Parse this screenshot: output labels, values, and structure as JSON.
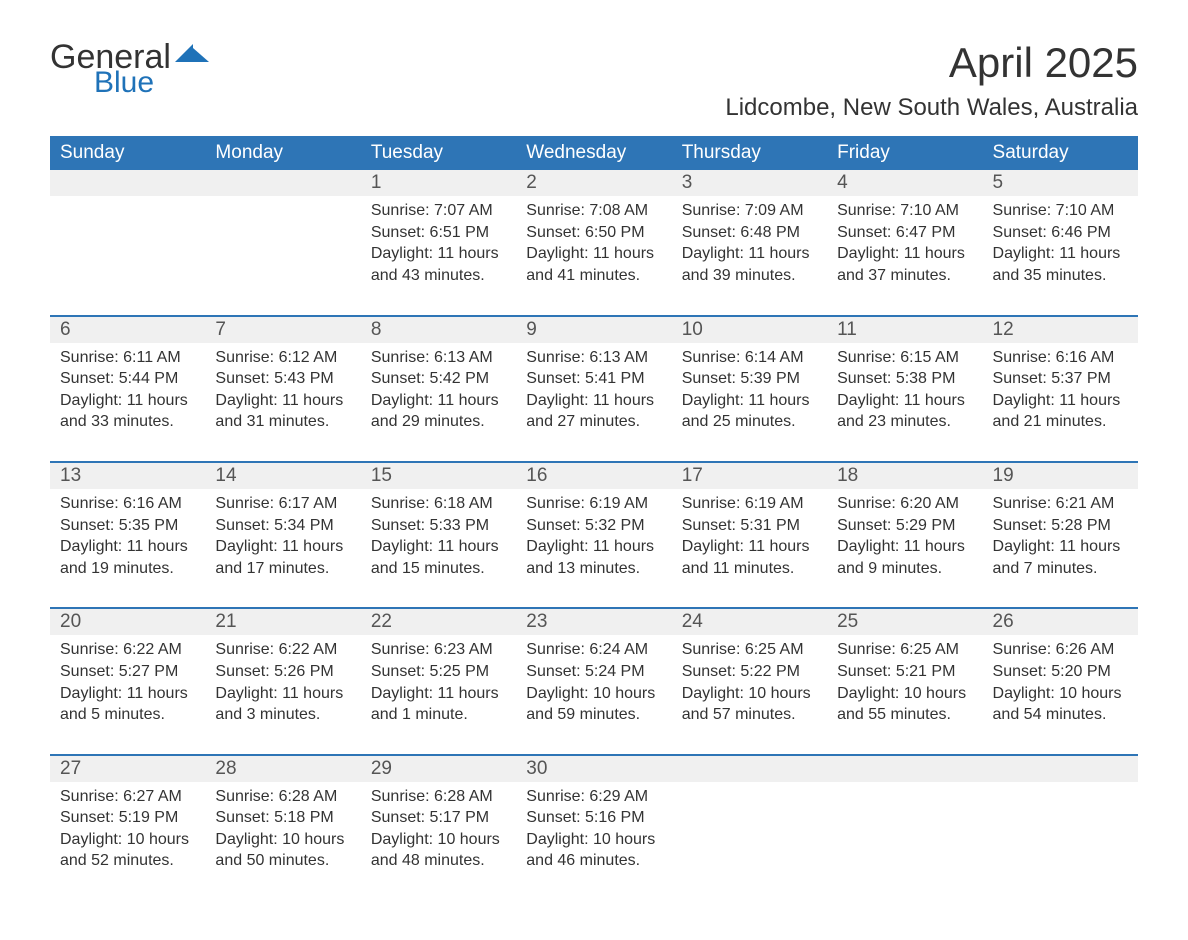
{
  "brand": {
    "word1": "General",
    "word2": "Blue",
    "word1_color": "#333333",
    "word2_color": "#1f72b8",
    "mark_color": "#1f72b8"
  },
  "title": "April 2025",
  "location": "Lidcombe, New South Wales, Australia",
  "colors": {
    "header_bg": "#2e75b6",
    "header_text": "#ffffff",
    "daynum_bg": "#f0f0f0",
    "rule": "#2e75b6",
    "body_text": "#333333",
    "page_bg": "#ffffff"
  },
  "typography": {
    "title_fontsize": 42,
    "location_fontsize": 24,
    "dayheader_fontsize": 19,
    "daynum_fontsize": 19,
    "cell_fontsize": 16,
    "font_family": "Segoe UI"
  },
  "day_headers": [
    "Sunday",
    "Monday",
    "Tuesday",
    "Wednesday",
    "Thursday",
    "Friday",
    "Saturday"
  ],
  "weeks": [
    [
      {
        "n": "",
        "sunrise": "",
        "sunset": "",
        "daylight": ""
      },
      {
        "n": "",
        "sunrise": "",
        "sunset": "",
        "daylight": ""
      },
      {
        "n": "1",
        "sunrise": "Sunrise: 7:07 AM",
        "sunset": "Sunset: 6:51 PM",
        "daylight": "Daylight: 11 hours and 43 minutes."
      },
      {
        "n": "2",
        "sunrise": "Sunrise: 7:08 AM",
        "sunset": "Sunset: 6:50 PM",
        "daylight": "Daylight: 11 hours and 41 minutes."
      },
      {
        "n": "3",
        "sunrise": "Sunrise: 7:09 AM",
        "sunset": "Sunset: 6:48 PM",
        "daylight": "Daylight: 11 hours and 39 minutes."
      },
      {
        "n": "4",
        "sunrise": "Sunrise: 7:10 AM",
        "sunset": "Sunset: 6:47 PM",
        "daylight": "Daylight: 11 hours and 37 minutes."
      },
      {
        "n": "5",
        "sunrise": "Sunrise: 7:10 AM",
        "sunset": "Sunset: 6:46 PM",
        "daylight": "Daylight: 11 hours and 35 minutes."
      }
    ],
    [
      {
        "n": "6",
        "sunrise": "Sunrise: 6:11 AM",
        "sunset": "Sunset: 5:44 PM",
        "daylight": "Daylight: 11 hours and 33 minutes."
      },
      {
        "n": "7",
        "sunrise": "Sunrise: 6:12 AM",
        "sunset": "Sunset: 5:43 PM",
        "daylight": "Daylight: 11 hours and 31 minutes."
      },
      {
        "n": "8",
        "sunrise": "Sunrise: 6:13 AM",
        "sunset": "Sunset: 5:42 PM",
        "daylight": "Daylight: 11 hours and 29 minutes."
      },
      {
        "n": "9",
        "sunrise": "Sunrise: 6:13 AM",
        "sunset": "Sunset: 5:41 PM",
        "daylight": "Daylight: 11 hours and 27 minutes."
      },
      {
        "n": "10",
        "sunrise": "Sunrise: 6:14 AM",
        "sunset": "Sunset: 5:39 PM",
        "daylight": "Daylight: 11 hours and 25 minutes."
      },
      {
        "n": "11",
        "sunrise": "Sunrise: 6:15 AM",
        "sunset": "Sunset: 5:38 PM",
        "daylight": "Daylight: 11 hours and 23 minutes."
      },
      {
        "n": "12",
        "sunrise": "Sunrise: 6:16 AM",
        "sunset": "Sunset: 5:37 PM",
        "daylight": "Daylight: 11 hours and 21 minutes."
      }
    ],
    [
      {
        "n": "13",
        "sunrise": "Sunrise: 6:16 AM",
        "sunset": "Sunset: 5:35 PM",
        "daylight": "Daylight: 11 hours and 19 minutes."
      },
      {
        "n": "14",
        "sunrise": "Sunrise: 6:17 AM",
        "sunset": "Sunset: 5:34 PM",
        "daylight": "Daylight: 11 hours and 17 minutes."
      },
      {
        "n": "15",
        "sunrise": "Sunrise: 6:18 AM",
        "sunset": "Sunset: 5:33 PM",
        "daylight": "Daylight: 11 hours and 15 minutes."
      },
      {
        "n": "16",
        "sunrise": "Sunrise: 6:19 AM",
        "sunset": "Sunset: 5:32 PM",
        "daylight": "Daylight: 11 hours and 13 minutes."
      },
      {
        "n": "17",
        "sunrise": "Sunrise: 6:19 AM",
        "sunset": "Sunset: 5:31 PM",
        "daylight": "Daylight: 11 hours and 11 minutes."
      },
      {
        "n": "18",
        "sunrise": "Sunrise: 6:20 AM",
        "sunset": "Sunset: 5:29 PM",
        "daylight": "Daylight: 11 hours and 9 minutes."
      },
      {
        "n": "19",
        "sunrise": "Sunrise: 6:21 AM",
        "sunset": "Sunset: 5:28 PM",
        "daylight": "Daylight: 11 hours and 7 minutes."
      }
    ],
    [
      {
        "n": "20",
        "sunrise": "Sunrise: 6:22 AM",
        "sunset": "Sunset: 5:27 PM",
        "daylight": "Daylight: 11 hours and 5 minutes."
      },
      {
        "n": "21",
        "sunrise": "Sunrise: 6:22 AM",
        "sunset": "Sunset: 5:26 PM",
        "daylight": "Daylight: 11 hours and 3 minutes."
      },
      {
        "n": "22",
        "sunrise": "Sunrise: 6:23 AM",
        "sunset": "Sunset: 5:25 PM",
        "daylight": "Daylight: 11 hours and 1 minute."
      },
      {
        "n": "23",
        "sunrise": "Sunrise: 6:24 AM",
        "sunset": "Sunset: 5:24 PM",
        "daylight": "Daylight: 10 hours and 59 minutes."
      },
      {
        "n": "24",
        "sunrise": "Sunrise: 6:25 AM",
        "sunset": "Sunset: 5:22 PM",
        "daylight": "Daylight: 10 hours and 57 minutes."
      },
      {
        "n": "25",
        "sunrise": "Sunrise: 6:25 AM",
        "sunset": "Sunset: 5:21 PM",
        "daylight": "Daylight: 10 hours and 55 minutes."
      },
      {
        "n": "26",
        "sunrise": "Sunrise: 6:26 AM",
        "sunset": "Sunset: 5:20 PM",
        "daylight": "Daylight: 10 hours and 54 minutes."
      }
    ],
    [
      {
        "n": "27",
        "sunrise": "Sunrise: 6:27 AM",
        "sunset": "Sunset: 5:19 PM",
        "daylight": "Daylight: 10 hours and 52 minutes."
      },
      {
        "n": "28",
        "sunrise": "Sunrise: 6:28 AM",
        "sunset": "Sunset: 5:18 PM",
        "daylight": "Daylight: 10 hours and 50 minutes."
      },
      {
        "n": "29",
        "sunrise": "Sunrise: 6:28 AM",
        "sunset": "Sunset: 5:17 PM",
        "daylight": "Daylight: 10 hours and 48 minutes."
      },
      {
        "n": "30",
        "sunrise": "Sunrise: 6:29 AM",
        "sunset": "Sunset: 5:16 PM",
        "daylight": "Daylight: 10 hours and 46 minutes."
      },
      {
        "n": "",
        "sunrise": "",
        "sunset": "",
        "daylight": ""
      },
      {
        "n": "",
        "sunrise": "",
        "sunset": "",
        "daylight": ""
      },
      {
        "n": "",
        "sunrise": "",
        "sunset": "",
        "daylight": ""
      }
    ]
  ]
}
